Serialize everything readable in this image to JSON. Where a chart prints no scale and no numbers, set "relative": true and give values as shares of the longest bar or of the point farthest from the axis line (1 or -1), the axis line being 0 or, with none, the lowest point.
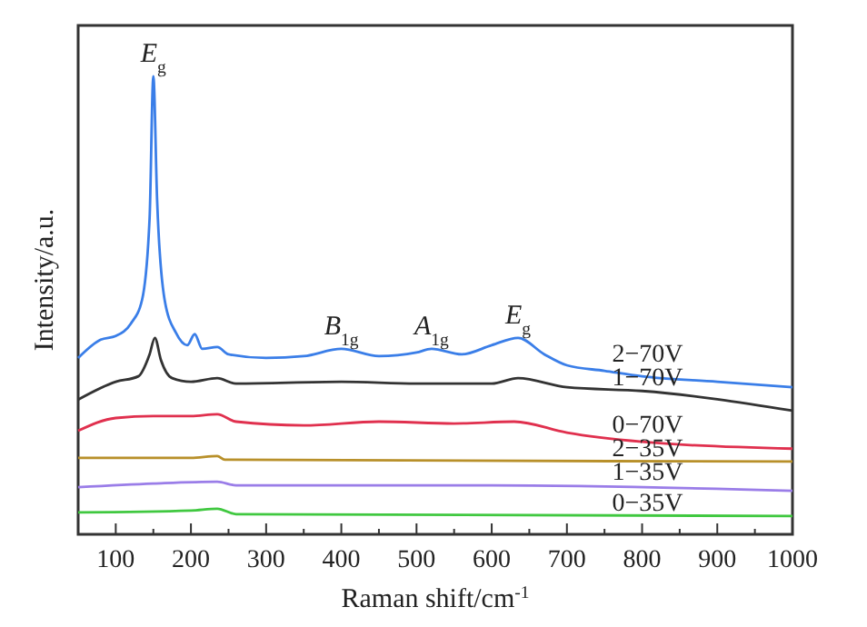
{
  "chart_data": {
    "type": "line",
    "relative": true,
    "xlabel": "Raman shift/cm$^{-1}$",
    "ylabel": "Intensity/a.u.",
    "xlim": [
      50,
      1000
    ],
    "xticks": [
      100,
      {
        "value": 150,
        "label": null
      },
      200,
      {
        "value": 250,
        "label": null
      },
      300,
      {
        "value": 350,
        "label": null
      },
      400,
      {
        "value": 450,
        "label": null
      },
      500,
      {
        "value": 550,
        "label": null
      },
      600,
      {
        "value": 650,
        "label": null
      },
      700,
      {
        "value": 750,
        "label": null
      },
      800,
      {
        "value": 850,
        "label": null
      },
      900,
      {
        "value": 950,
        "label": null
      },
      1000
    ],
    "grid": false,
    "legend": false,
    "marker": "none",
    "line_style": "solid",
    "annotations": [
      {
        "text": "E$_{g}$",
        "x": 150,
        "y": 1
      },
      {
        "text": "B$_{1g}$",
        "x": 400,
        "y": 0.405
      },
      {
        "text": "A$_{1g}$",
        "x": 520,
        "y": 0.405
      },
      {
        "text": "E$_{g}$",
        "x": 635,
        "y": 0.429
      }
    ],
    "series": [
      {
        "name": "2−70V",
        "color": "#3a7ee8",
        "x": [
          50,
          80,
          100,
          120,
          135,
          145,
          150,
          155,
          165,
          180,
          195,
          205,
          215,
          235,
          250,
          300,
          350,
          400,
          450,
          500,
          520,
          560,
          600,
          635,
          670,
          700,
          750,
          800,
          900,
          1000
        ],
        "values": [
          0.385,
          0.425,
          0.433,
          0.46,
          0.512,
          0.69,
          1,
          0.73,
          0.512,
          0.44,
          0.413,
          0.437,
          0.405,
          0.409,
          0.393,
          0.385,
          0.389,
          0.405,
          0.389,
          0.397,
          0.405,
          0.393,
          0.413,
          0.429,
          0.393,
          0.369,
          0.357,
          0.345,
          0.333,
          0.321
        ]
      },
      {
        "name": "1−70V",
        "color": "#333333",
        "x": [
          50,
          100,
          130,
          145,
          152,
          160,
          175,
          200,
          235,
          260,
          400,
          500,
          600,
          635,
          700,
          800,
          1000
        ],
        "values": [
          0.294,
          0.333,
          0.345,
          0.393,
          0.429,
          0.381,
          0.341,
          0.333,
          0.341,
          0.329,
          0.333,
          0.329,
          0.329,
          0.341,
          0.321,
          0.313,
          0.27
        ]
      },
      {
        "name": "0−70V",
        "color": "#e0304e",
        "x": [
          50,
          100,
          150,
          200,
          235,
          260,
          350,
          450,
          550,
          630,
          700,
          800,
          1000
        ],
        "values": [
          0.226,
          0.254,
          0.258,
          0.258,
          0.262,
          0.246,
          0.238,
          0.246,
          0.242,
          0.246,
          0.222,
          0.202,
          0.187
        ]
      },
      {
        "name": "2−35V",
        "color": "#b8902a",
        "x": [
          50,
          200,
          235,
          245,
          1000
        ],
        "values": [
          0.167,
          0.167,
          0.171,
          0.163,
          0.159
        ]
      },
      {
        "name": "1−35V",
        "color": "#9a7de8",
        "x": [
          50,
          150,
          235,
          260,
          600,
          1000
        ],
        "values": [
          0.103,
          0.111,
          0.115,
          0.107,
          0.107,
          0.095
        ]
      },
      {
        "name": "0−35V",
        "color": "#40c840",
        "x": [
          50,
          200,
          235,
          260,
          1000
        ],
        "values": [
          0.048,
          0.052,
          0.056,
          0.044,
          0.04
        ]
      }
    ]
  }
}
